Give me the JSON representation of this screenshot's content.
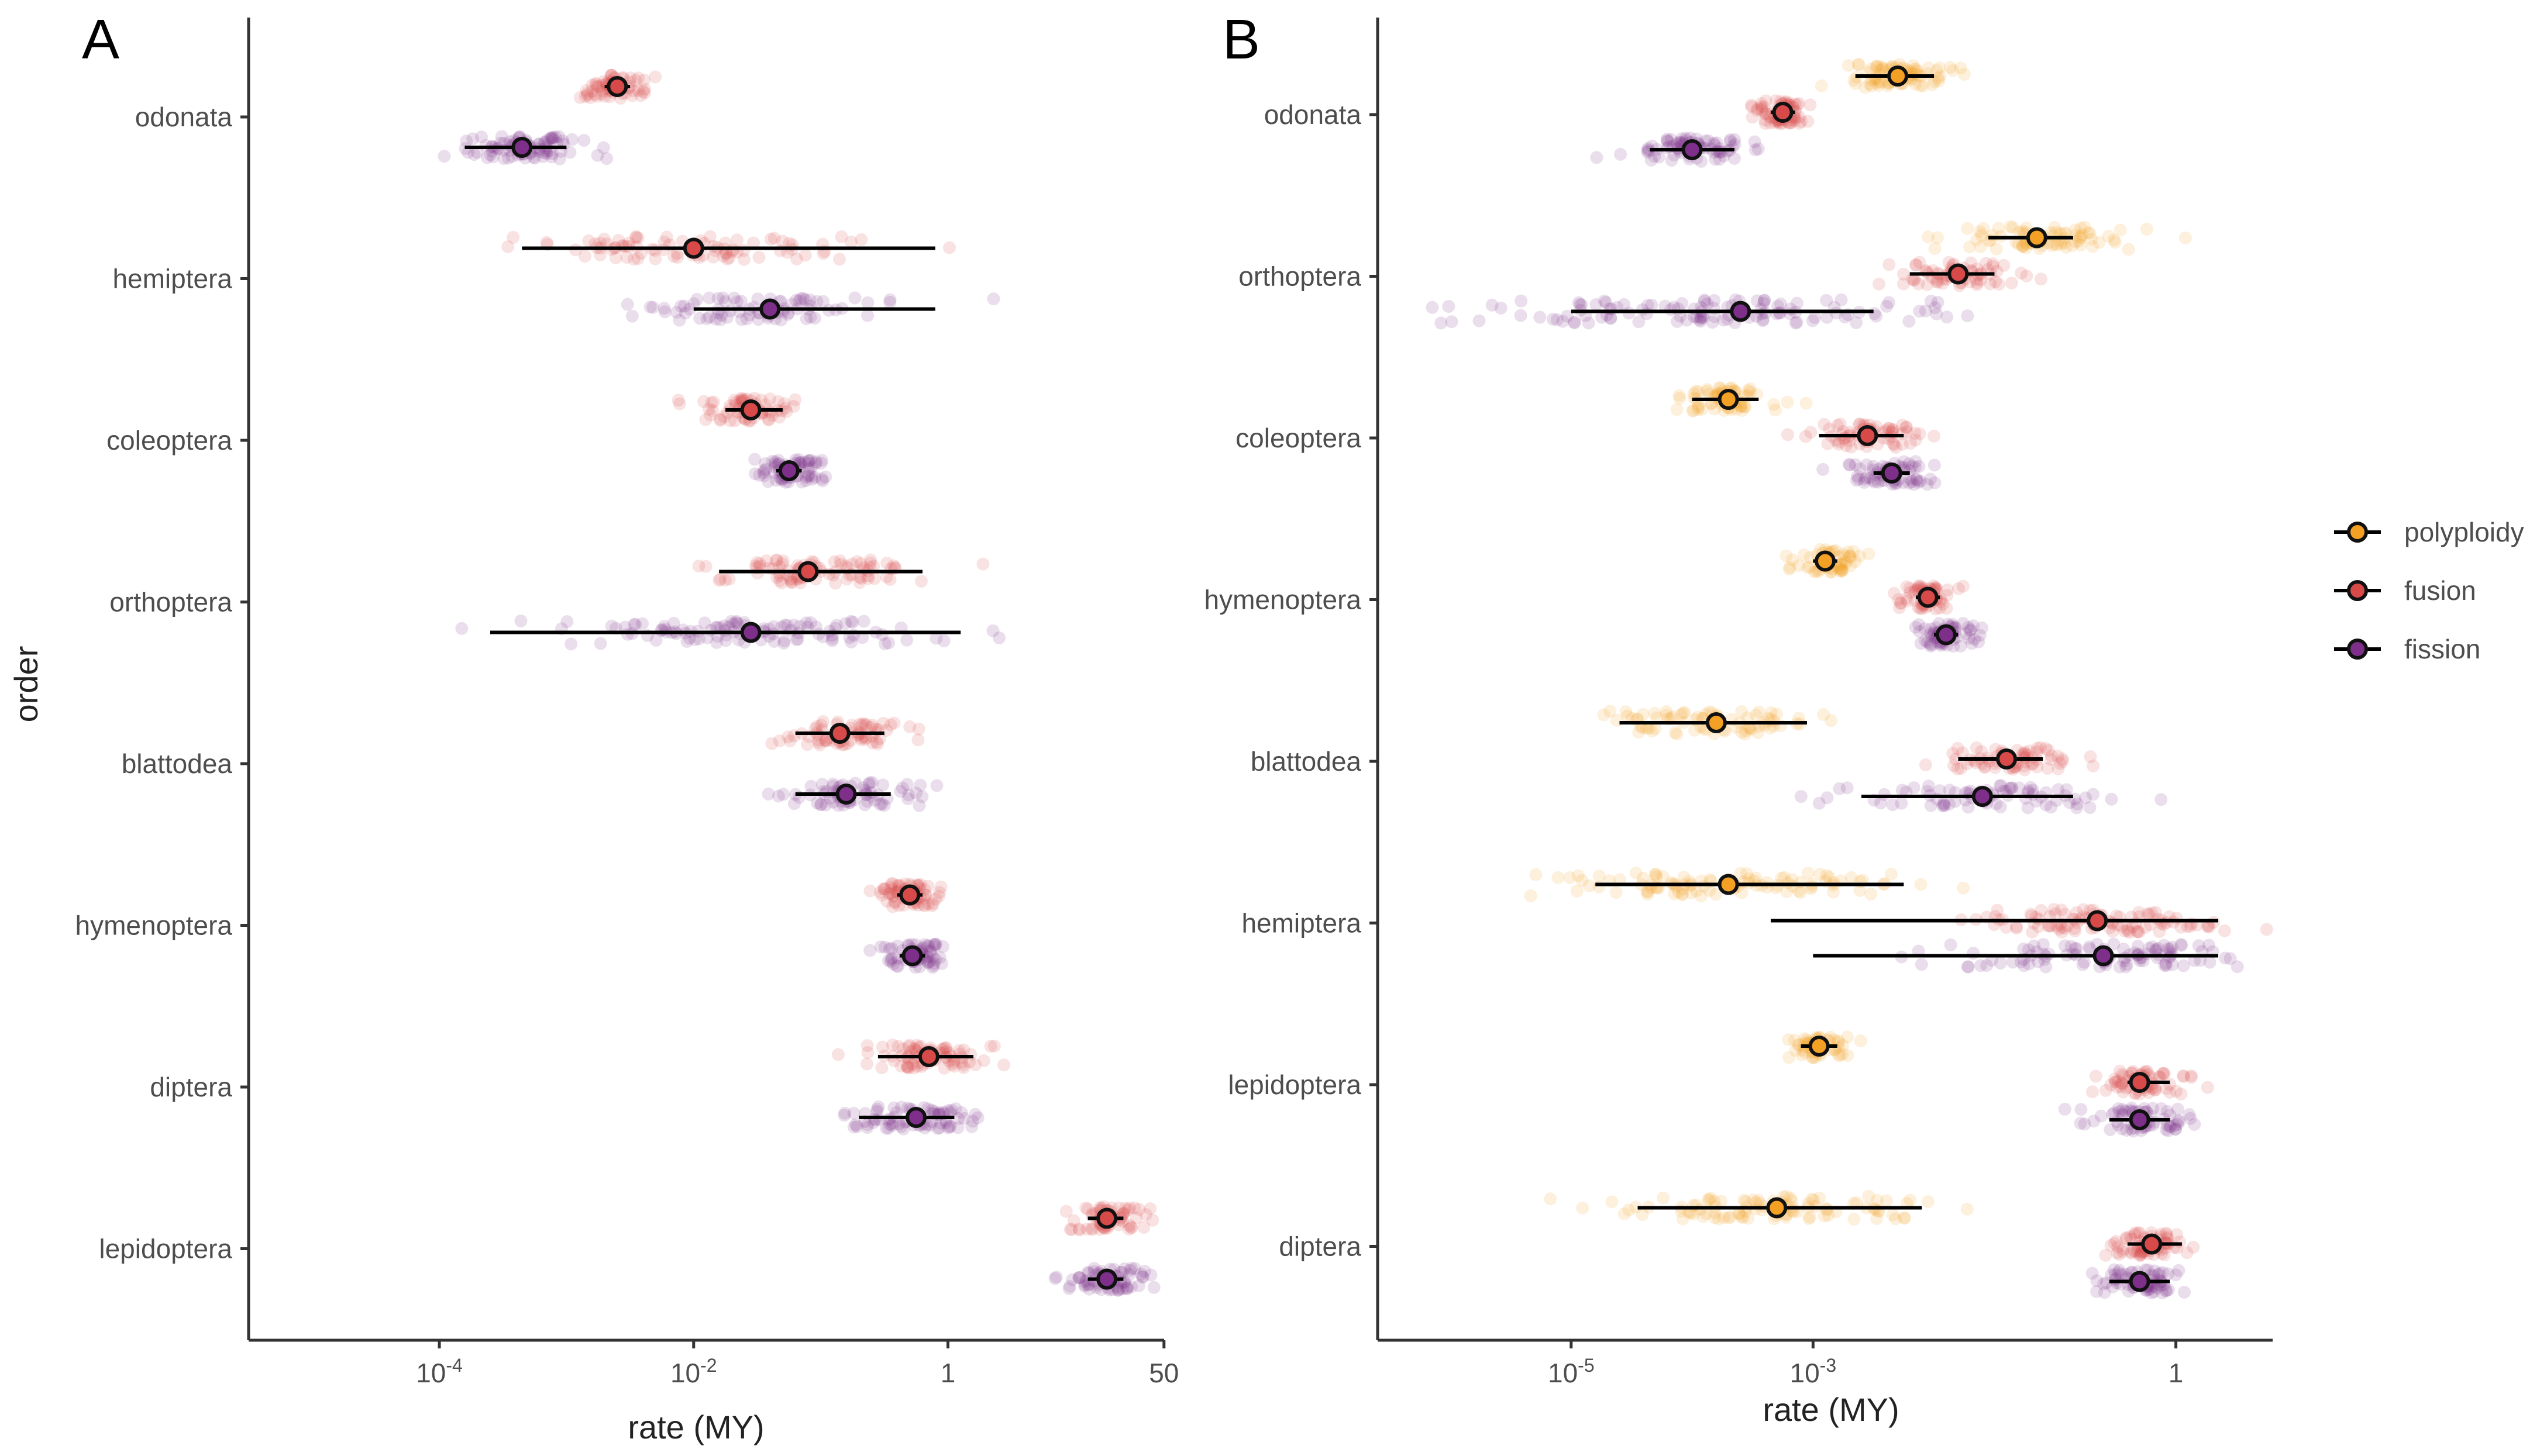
{
  "figure": {
    "colors": {
      "polyploidy": "#f4a025",
      "fusion": "#d84a4a",
      "fission": "#7d2f8a",
      "axis": "#333333",
      "estimate_line": "#000000"
    },
    "legend": [
      {
        "key": "polyploidy",
        "label": "polyploidy"
      },
      {
        "key": "fusion",
        "label": "fusion"
      },
      {
        "key": "fission",
        "label": "fission"
      }
    ]
  },
  "chart_data": [
    {
      "panel": "A",
      "type": "scatter",
      "title": "A",
      "xlabel": "rate (MY)",
      "ylabel": "order",
      "x_scale": "log10",
      "xlim_log10": [
        -5.5,
        1.7
      ],
      "x_ticks": [
        {
          "value_log10": -4,
          "base": "10",
          "exp": "-4"
        },
        {
          "value_log10": -2,
          "base": "10",
          "exp": "-2"
        },
        {
          "value_log10": 0,
          "base": "1",
          "exp": ""
        },
        {
          "value_log10": 1.699,
          "base": "50",
          "exp": ""
        }
      ],
      "orders": [
        "odonata",
        "hemiptera",
        "coleoptera",
        "orthoptera",
        "blattodea",
        "hymenoptera",
        "diptera",
        "lepidoptera"
      ],
      "series": [
        {
          "order": "odonata",
          "type": "fusion",
          "median_log10": -2.6,
          "ci_log10": [
            -2.7,
            -2.5
          ],
          "spread": 0.35,
          "n": 70
        },
        {
          "order": "odonata",
          "type": "fission",
          "median_log10": -3.35,
          "ci_log10": [
            -3.8,
            -3.0
          ],
          "spread": 0.6,
          "n": 90
        },
        {
          "order": "hemiptera",
          "type": "fusion",
          "median_log10": -2.0,
          "ci_log10": [
            -3.35,
            -0.1
          ],
          "spread": 1.6,
          "n": 90
        },
        {
          "order": "hemiptera",
          "type": "fission",
          "median_log10": -1.4,
          "ci_log10": [
            -2.0,
            -0.1
          ],
          "spread": 1.1,
          "n": 80
        },
        {
          "order": "coleoptera",
          "type": "fusion",
          "median_log10": -1.55,
          "ci_log10": [
            -1.75,
            -1.3
          ],
          "spread": 0.4,
          "n": 70
        },
        {
          "order": "coleoptera",
          "type": "fission",
          "median_log10": -1.25,
          "ci_log10": [
            -1.35,
            -1.15
          ],
          "spread": 0.35,
          "n": 70
        },
        {
          "order": "orthoptera",
          "type": "fusion",
          "median_log10": -1.1,
          "ci_log10": [
            -1.8,
            -0.2
          ],
          "spread": 1.0,
          "n": 90
        },
        {
          "order": "orthoptera",
          "type": "fission",
          "median_log10": -1.55,
          "ci_log10": [
            -3.6,
            0.1
          ],
          "spread": 1.9,
          "n": 110
        },
        {
          "order": "blattodea",
          "type": "fusion",
          "median_log10": -0.85,
          "ci_log10": [
            -1.2,
            -0.5
          ],
          "spread": 0.55,
          "n": 70
        },
        {
          "order": "blattodea",
          "type": "fission",
          "median_log10": -0.8,
          "ci_log10": [
            -1.2,
            -0.45
          ],
          "spread": 0.7,
          "n": 70
        },
        {
          "order": "hymenoptera",
          "type": "fusion",
          "median_log10": -0.3,
          "ci_log10": [
            -0.4,
            -0.2
          ],
          "spread": 0.35,
          "n": 70
        },
        {
          "order": "hymenoptera",
          "type": "fission",
          "median_log10": -0.28,
          "ci_log10": [
            -0.38,
            -0.18
          ],
          "spread": 0.32,
          "n": 70
        },
        {
          "order": "diptera",
          "type": "fusion",
          "median_log10": -0.15,
          "ci_log10": [
            -0.55,
            0.2
          ],
          "spread": 0.6,
          "n": 80
        },
        {
          "order": "diptera",
          "type": "fission",
          "median_log10": -0.25,
          "ci_log10": [
            -0.7,
            0.05
          ],
          "spread": 0.6,
          "n": 80
        },
        {
          "order": "lepidoptera",
          "type": "fusion",
          "median_log10": 1.25,
          "ci_log10": [
            1.1,
            1.38
          ],
          "spread": 0.4,
          "n": 70
        },
        {
          "order": "lepidoptera",
          "type": "fission",
          "median_log10": 1.25,
          "ci_log10": [
            1.1,
            1.38
          ],
          "spread": 0.4,
          "n": 70
        }
      ]
    },
    {
      "panel": "B",
      "type": "scatter",
      "title": "B",
      "xlabel": "rate (MY)",
      "ylabel": "",
      "x_scale": "log10",
      "xlim_log10": [
        -6.6,
        0.8
      ],
      "x_ticks": [
        {
          "value_log10": -5,
          "base": "10",
          "exp": "-5"
        },
        {
          "value_log10": -3,
          "base": "10",
          "exp": "-3"
        },
        {
          "value_log10": 0,
          "base": "1",
          "exp": ""
        }
      ],
      "orders": [
        "odonata",
        "orthoptera",
        "coleoptera",
        "hymenoptera",
        "blattodea",
        "hemiptera",
        "lepidoptera",
        "diptera"
      ],
      "series": [
        {
          "order": "odonata",
          "type": "polyploidy",
          "median_log10": -2.3,
          "ci_log10": [
            -2.65,
            -2.0
          ],
          "spread": 0.5,
          "n": 80
        },
        {
          "order": "odonata",
          "type": "fusion",
          "median_log10": -3.25,
          "ci_log10": [
            -3.35,
            -3.15
          ],
          "spread": 0.3,
          "n": 70
        },
        {
          "order": "odonata",
          "type": "fission",
          "median_log10": -4.0,
          "ci_log10": [
            -4.35,
            -3.65
          ],
          "spread": 0.5,
          "n": 80
        },
        {
          "order": "orthoptera",
          "type": "polyploidy",
          "median_log10": -1.15,
          "ci_log10": [
            -1.55,
            -0.85
          ],
          "spread": 0.9,
          "n": 80
        },
        {
          "order": "orthoptera",
          "type": "fusion",
          "median_log10": -1.8,
          "ci_log10": [
            -2.2,
            -1.5
          ],
          "spread": 0.6,
          "n": 70
        },
        {
          "order": "orthoptera",
          "type": "fission",
          "median_log10": -3.6,
          "ci_log10": [
            -5.0,
            -2.5
          ],
          "spread": 2.3,
          "n": 120
        },
        {
          "order": "coleoptera",
          "type": "polyploidy",
          "median_log10": -3.7,
          "ci_log10": [
            -4.0,
            -3.45
          ],
          "spread": 0.45,
          "n": 70
        },
        {
          "order": "coleoptera",
          "type": "fusion",
          "median_log10": -2.55,
          "ci_log10": [
            -2.95,
            -2.25
          ],
          "spread": 0.5,
          "n": 70
        },
        {
          "order": "coleoptera",
          "type": "fission",
          "median_log10": -2.35,
          "ci_log10": [
            -2.5,
            -2.2
          ],
          "spread": 0.45,
          "n": 70
        },
        {
          "order": "hymenoptera",
          "type": "polyploidy",
          "median_log10": -2.9,
          "ci_log10": [
            -3.0,
            -2.8
          ],
          "spread": 0.3,
          "n": 60
        },
        {
          "order": "hymenoptera",
          "type": "fusion",
          "median_log10": -2.05,
          "ci_log10": [
            -2.15,
            -1.95
          ],
          "spread": 0.3,
          "n": 60
        },
        {
          "order": "hymenoptera",
          "type": "fission",
          "median_log10": -1.9,
          "ci_log10": [
            -2.0,
            -1.8
          ],
          "spread": 0.32,
          "n": 60
        },
        {
          "order": "blattodea",
          "type": "polyploidy",
          "median_log10": -3.8,
          "ci_log10": [
            -4.6,
            -3.05
          ],
          "spread": 1.1,
          "n": 80
        },
        {
          "order": "blattodea",
          "type": "fusion",
          "median_log10": -1.4,
          "ci_log10": [
            -1.8,
            -1.1
          ],
          "spread": 0.6,
          "n": 70
        },
        {
          "order": "blattodea",
          "type": "fission",
          "median_log10": -1.6,
          "ci_log10": [
            -2.6,
            -0.85
          ],
          "spread": 1.4,
          "n": 80
        },
        {
          "order": "hemiptera",
          "type": "polyploidy",
          "median_log10": -3.7,
          "ci_log10": [
            -4.8,
            -2.25
          ],
          "spread": 1.8,
          "n": 100
        },
        {
          "order": "hemiptera",
          "type": "fusion",
          "median_log10": -0.65,
          "ci_log10": [
            -3.35,
            0.35
          ],
          "spread": 1.4,
          "n": 100
        },
        {
          "order": "hemiptera",
          "type": "fission",
          "median_log10": -0.6,
          "ci_log10": [
            -3.0,
            0.35
          ],
          "spread": 1.5,
          "n": 100
        },
        {
          "order": "lepidoptera",
          "type": "polyploidy",
          "median_log10": -2.95,
          "ci_log10": [
            -3.1,
            -2.8
          ],
          "spread": 0.3,
          "n": 60
        },
        {
          "order": "lepidoptera",
          "type": "fusion",
          "median_log10": -0.3,
          "ci_log10": [
            -0.4,
            -0.05
          ],
          "spread": 0.35,
          "n": 70
        },
        {
          "order": "lepidoptera",
          "type": "fission",
          "median_log10": -0.3,
          "ci_log10": [
            -0.55,
            -0.05
          ],
          "spread": 0.55,
          "n": 70
        },
        {
          "order": "diptera",
          "type": "polyploidy",
          "median_log10": -3.3,
          "ci_log10": [
            -4.45,
            -2.1
          ],
          "spread": 1.5,
          "n": 100
        },
        {
          "order": "diptera",
          "type": "fusion",
          "median_log10": -0.2,
          "ci_log10": [
            -0.4,
            0.05
          ],
          "spread": 0.4,
          "n": 70
        },
        {
          "order": "diptera",
          "type": "fission",
          "median_log10": -0.3,
          "ci_log10": [
            -0.55,
            -0.05
          ],
          "spread": 0.45,
          "n": 70
        }
      ]
    }
  ]
}
